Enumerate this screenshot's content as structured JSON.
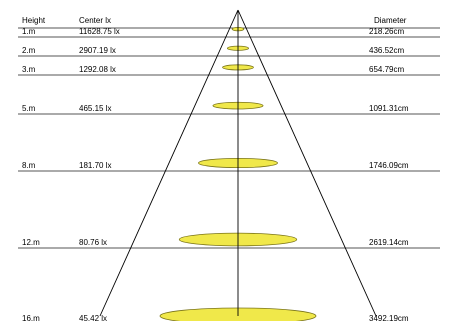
{
  "headers": {
    "height": "Height",
    "center_lux": "Center lx",
    "diameter": "Diameter"
  },
  "colors": {
    "ellipse_fill": "#f0e84a",
    "ellipse_stroke": "#7a7418",
    "line": "#000000",
    "row_line": "#555555"
  },
  "chart_data": {
    "type": "table",
    "rows": [
      {
        "height": "1.m",
        "center_lux": "11628.75 lx",
        "diameter": "218.26cm",
        "distance_m": 1,
        "diameter_cm": 218.26
      },
      {
        "height": "2.m",
        "center_lux": "2907.19 lx",
        "diameter": "436.52cm",
        "distance_m": 2,
        "diameter_cm": 436.52
      },
      {
        "height": "3.m",
        "center_lux": "1292.08 lx",
        "diameter": "654.79cm",
        "distance_m": 3,
        "diameter_cm": 654.79
      },
      {
        "height": "5.m",
        "center_lux": "465.15 lx",
        "diameter": "1091.31cm",
        "distance_m": 5,
        "diameter_cm": 1091.31
      },
      {
        "height": "8.m",
        "center_lux": "181.70 lx",
        "diameter": "1746.09cm",
        "distance_m": 8,
        "diameter_cm": 1746.09
      },
      {
        "height": "12.m",
        "center_lux": "80.76 lx",
        "diameter": "2619.14cm",
        "distance_m": 12,
        "diameter_cm": 2619.14
      },
      {
        "height": "16.m",
        "center_lux": "45.42 lx",
        "diameter": "3492.19cm",
        "distance_m": 16,
        "diameter_cm": 3492.19
      }
    ]
  }
}
